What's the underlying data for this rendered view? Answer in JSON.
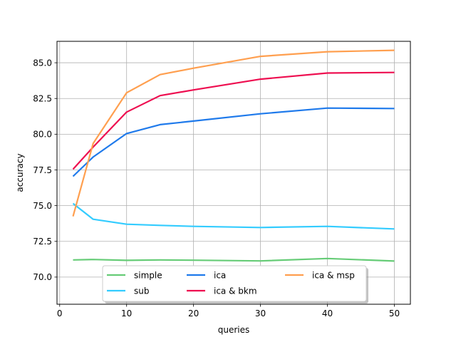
{
  "chart_data": {
    "type": "line",
    "title": "",
    "xlabel": "queries",
    "ylabel": "accuracy",
    "xlim": [
      -0.4,
      52.4
    ],
    "ylim": [
      68.1,
      86.5
    ],
    "xticks": [
      0,
      10,
      20,
      30,
      40,
      50
    ],
    "yticks": [
      70.0,
      72.5,
      75.0,
      77.5,
      80.0,
      82.5,
      85.0
    ],
    "xtick_labels": [
      "0",
      "10",
      "20",
      "30",
      "40",
      "50"
    ],
    "ytick_labels": [
      "70.0",
      "72.5",
      "75.0",
      "77.5",
      "80.0",
      "82.5",
      "85.0"
    ],
    "grid": true,
    "legend_position": "lower-center",
    "x": [
      2,
      5,
      10,
      15,
      20,
      30,
      40,
      50
    ],
    "series": [
      {
        "name": "simple",
        "color": "#66cc77",
        "values": [
          71.2,
          71.23,
          71.17,
          71.2,
          71.18,
          71.13,
          71.3,
          71.12
        ]
      },
      {
        "name": "sub",
        "color": "#33ccff",
        "values": [
          75.15,
          74.05,
          73.7,
          73.62,
          73.55,
          73.47,
          73.55,
          73.37
        ]
      },
      {
        "name": "ica",
        "color": "#1f7aeb",
        "values": [
          77.05,
          78.4,
          80.05,
          80.67,
          80.92,
          81.43,
          81.83,
          81.8
        ]
      },
      {
        "name": "ica & bkm",
        "color": "#ee0e50",
        "values": [
          77.55,
          79.1,
          81.55,
          82.7,
          83.1,
          83.85,
          84.28,
          84.32
        ]
      },
      {
        "name": "ica & msp",
        "color": "#ff9f4f",
        "values": [
          74.25,
          79.35,
          82.9,
          84.17,
          84.62,
          85.45,
          85.77,
          85.87
        ]
      }
    ]
  }
}
